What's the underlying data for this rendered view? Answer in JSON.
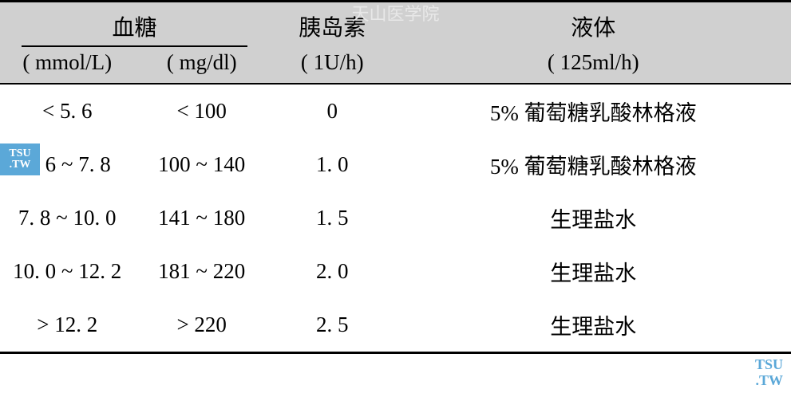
{
  "watermarks": {
    "top": "天山医学院",
    "left_line1": "TSU",
    "left_line2": ".TW",
    "right_line1": "TSU",
    "right_line2": ".TW"
  },
  "table": {
    "headers": {
      "sugar_group": "血糖",
      "mmol": "( mmol/L)",
      "mgdl": "( mg/dl)",
      "insulin_label": "胰岛素",
      "insulin_unit": "( 1U/h)",
      "fluid_label": "液体",
      "fluid_unit": "( 125ml/h)"
    },
    "rows": [
      {
        "mmol": "< 5. 6",
        "mgdl": "< 100",
        "insulin": "0",
        "fluid": "5% 葡萄糖乳酸林格液"
      },
      {
        "mmol": "5. 6 ~ 7. 8",
        "mgdl": "100 ~ 140",
        "insulin": "1. 0",
        "fluid": "5% 葡萄糖乳酸林格液"
      },
      {
        "mmol": "7. 8 ~ 10. 0",
        "mgdl": "141 ~ 180",
        "insulin": "1. 5",
        "fluid": "生理盐水"
      },
      {
        "mmol": "10. 0 ~ 12. 2",
        "mgdl": "181 ~ 220",
        "insulin": "2. 0",
        "fluid": "生理盐水"
      },
      {
        "mmol": "> 12. 2",
        "mgdl": "> 220",
        "insulin": "2. 5",
        "fluid": "生理盐水"
      }
    ],
    "styling": {
      "header_background": "#d0d0d0",
      "border_color": "#000000",
      "text_color": "#000000",
      "body_background": "#ffffff",
      "header_fontsize": 28,
      "cell_fontsize": 27,
      "border_top_width": 3,
      "border_bottom_width": 3,
      "header_border_width": 2
    }
  }
}
